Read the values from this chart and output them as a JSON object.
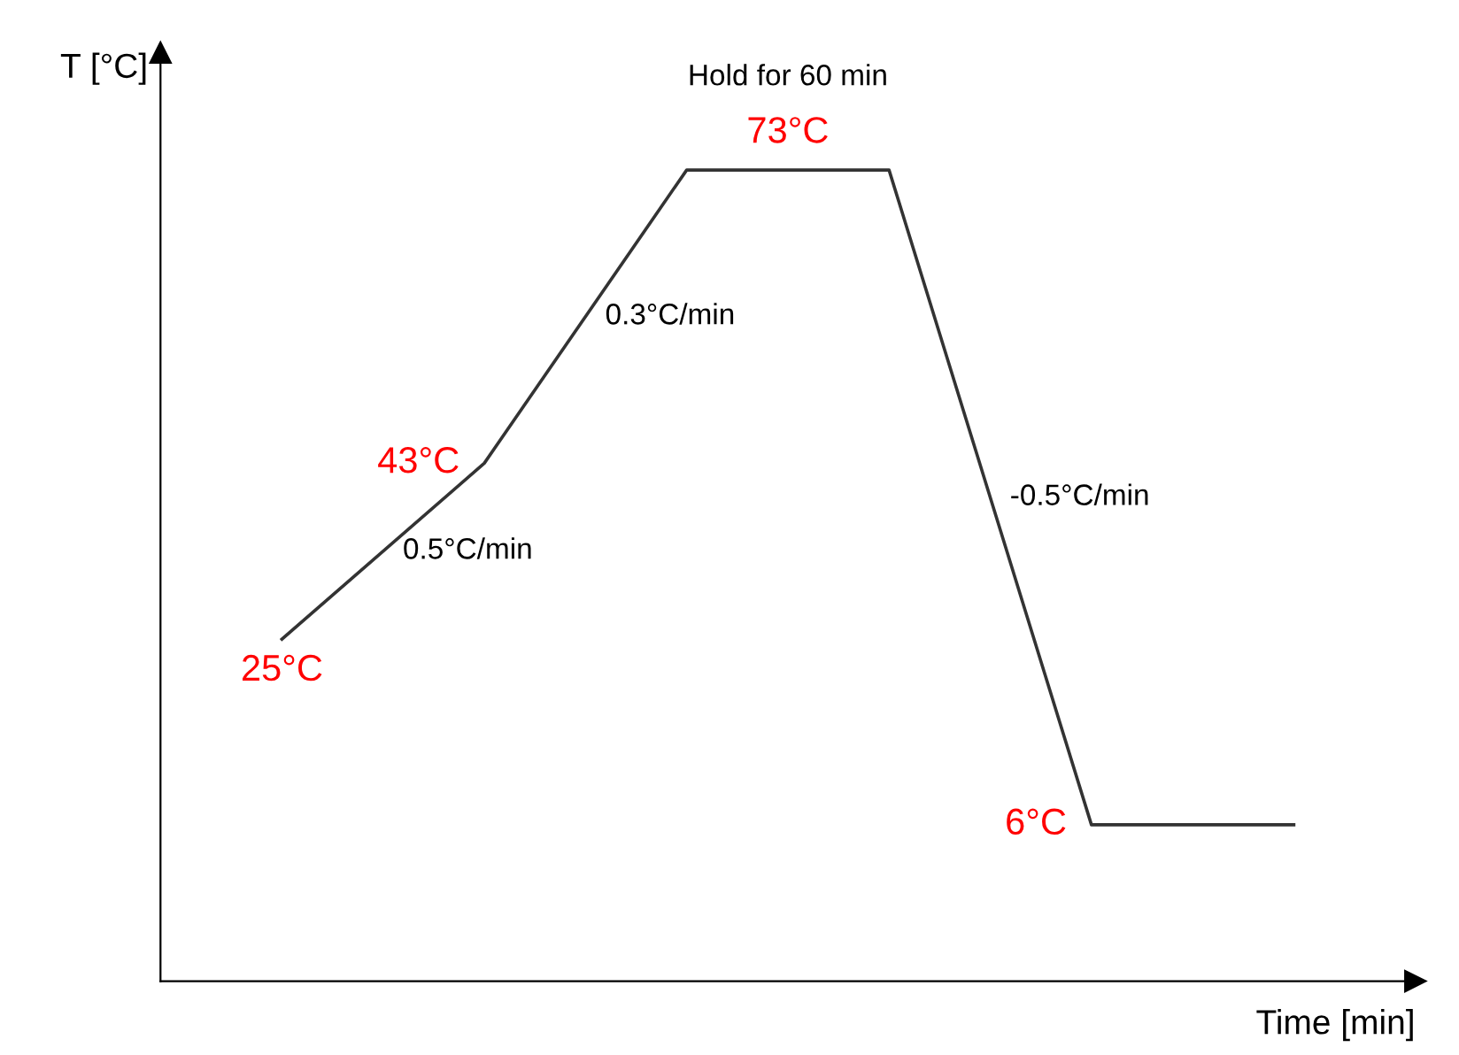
{
  "chart_data": {
    "type": "line",
    "xlabel": "Time [min]",
    "ylabel": "T [°C]",
    "categories": [
      null,
      null,
      null,
      null,
      null,
      null
    ],
    "series": [
      {
        "color": "#333333",
        "values": [
          25,
          43,
          73,
          73,
          6,
          6
        ],
        "value_labels": [
          "25°C",
          "43°C",
          "73°C",
          null,
          "6°C",
          null
        ]
      }
    ],
    "ylim": [
      -10,
      85
    ],
    "grid": false,
    "legend": false,
    "marker": "none",
    "line_style": "solid",
    "annotations": [
      "0.5°C/min",
      "0.3°C/min",
      "Hold for 60 min",
      "-0.5°C/min"
    ]
  }
}
